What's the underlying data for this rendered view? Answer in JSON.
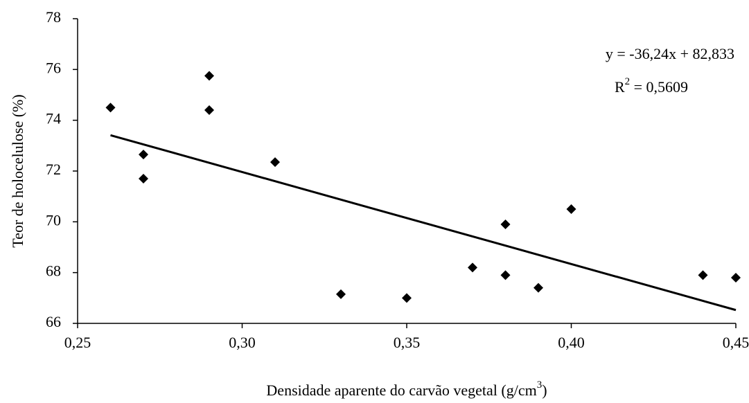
{
  "chart_data": {
    "type": "scatter",
    "x_label": [
      "Densidade aparente do carvão vegetal (g/cm",
      "3",
      ")"
    ],
    "y_label": "Teor de holocelulose (%)",
    "x": [
      0.26,
      0.27,
      0.27,
      0.29,
      0.29,
      0.31,
      0.33,
      0.35,
      0.37,
      0.38,
      0.38,
      0.39,
      0.4,
      0.44,
      0.45
    ],
    "series": [
      {
        "color": "#000000",
        "values": [
          74.5,
          72.65,
          71.7,
          75.75,
          74.4,
          72.35,
          67.15,
          67.0,
          68.2,
          69.9,
          67.9,
          67.4,
          70.5,
          67.9,
          67.8
        ]
      }
    ],
    "trendline": {
      "slope": -36.24,
      "intercept": 82.833,
      "color": "#000000",
      "equation": "y = -36,24x + 82,833",
      "r2_label": [
        "R",
        "2",
        " = 0,5609"
      ]
    },
    "xlim": [
      0.25,
      0.45
    ],
    "xticks": [
      {
        "value": 0.25,
        "label": "0,25"
      },
      {
        "value": 0.3,
        "label": "0,30"
      },
      {
        "value": 0.35,
        "label": "0,35"
      },
      {
        "value": 0.4,
        "label": "0,40"
      },
      {
        "value": 0.45,
        "label": "0,45"
      }
    ],
    "ylim": [
      66,
      78
    ],
    "yticks": [
      66,
      68,
      70,
      72,
      74,
      76,
      78
    ],
    "grid": false
  }
}
